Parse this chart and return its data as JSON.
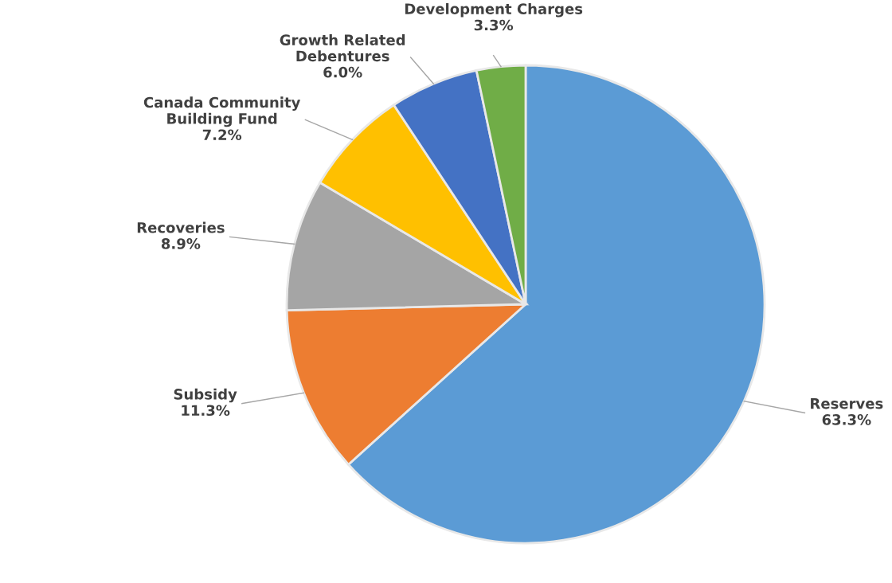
{
  "chart_data": {
    "type": "pie",
    "categories": [
      "Reserves",
      "Subsidy",
      "Recoveries",
      "Canada Community\nBuilding Fund",
      "Growth Related\nDebentures",
      "Development Charges"
    ],
    "values": [
      63.3,
      11.3,
      8.9,
      7.2,
      6.0,
      3.3
    ],
    "value_labels": [
      "63.3%",
      "11.3%",
      "8.9%",
      "7.2%",
      "6.0%",
      "3.3%"
    ],
    "colors": [
      "#5b9bd5",
      "#ed7d31",
      "#a5a5a5",
      "#ffc000",
      "#4472c4",
      "#70ad47"
    ]
  }
}
